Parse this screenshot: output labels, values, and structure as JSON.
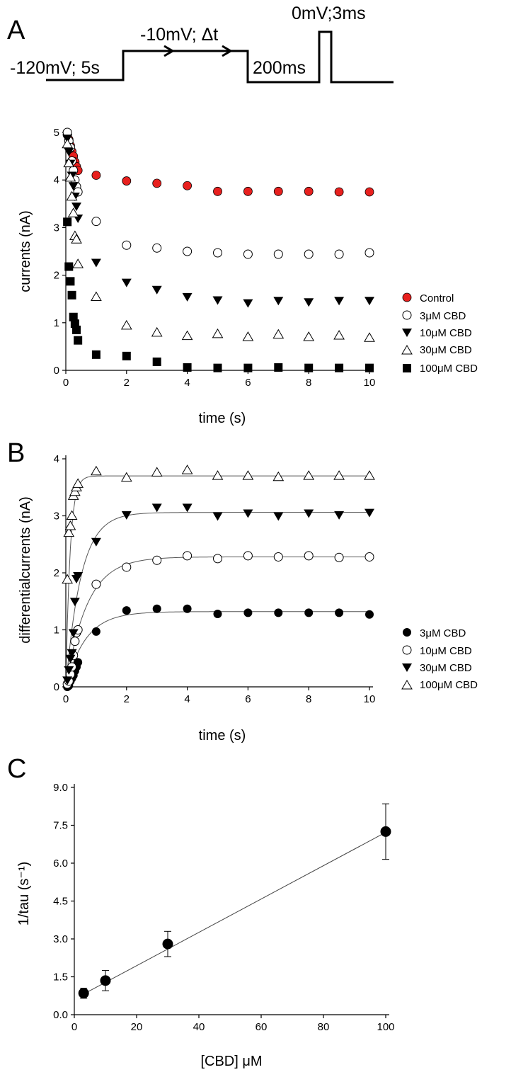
{
  "panel_labels": {
    "a": "A",
    "b": "B",
    "c": "C"
  },
  "protocol": {
    "hold_label": "-120mV; 5s",
    "step_label": "-10mV; Δt",
    "gap_label": "200ms",
    "test_label": "0mV;3ms"
  },
  "chart_data": [
    {
      "id": "A",
      "type": "scatter",
      "xlabel": "time (s)",
      "ylabel": "currents (nA)",
      "xlim": [
        0,
        10
      ],
      "ylim": [
        0,
        5
      ],
      "xticks": [
        "0",
        "2",
        "4",
        "6",
        "8",
        "10"
      ],
      "yticks": [
        "0",
        "1",
        "2",
        "3",
        "4",
        "5"
      ],
      "x": [
        0.05,
        0.1,
        0.15,
        0.2,
        0.25,
        0.3,
        0.35,
        0.4,
        1,
        2,
        3,
        4,
        5,
        6,
        7,
        8,
        9,
        10
      ],
      "series": [
        {
          "name": "Control",
          "marker": "circle-red",
          "values": [
            4.95,
            4.85,
            4.72,
            4.6,
            4.5,
            4.38,
            4.28,
            4.2,
            4.1,
            3.98,
            3.93,
            3.88,
            3.76,
            3.76,
            3.76,
            3.76,
            3.75,
            3.75
          ]
        },
        {
          "name": "3μM CBD",
          "marker": "circle-open",
          "values": [
            5.0,
            4.82,
            4.68,
            4.4,
            4.2,
            4.0,
            3.86,
            3.75,
            3.13,
            2.63,
            2.57,
            2.5,
            2.47,
            2.44,
            2.44,
            2.44,
            2.44,
            2.47
          ]
        },
        {
          "name": "10μM CBD",
          "marker": "triangle-down-filled",
          "values": [
            4.88,
            4.6,
            4.35,
            4.1,
            3.88,
            3.66,
            3.45,
            3.2,
            2.27,
            1.85,
            1.7,
            1.55,
            1.48,
            1.42,
            1.47,
            1.44,
            1.47,
            1.47
          ]
        },
        {
          "name": "30μM CBD",
          "marker": "triangle-up-open",
          "values": [
            4.75,
            4.35,
            4.05,
            3.65,
            3.3,
            2.82,
            2.75,
            2.23,
            1.54,
            0.94,
            0.79,
            0.72,
            0.76,
            0.7,
            0.75,
            0.7,
            0.73,
            0.68
          ]
        },
        {
          "name": "100μM CBD",
          "marker": "square-filled",
          "values": [
            3.12,
            2.18,
            1.87,
            1.58,
            1.12,
            0.98,
            0.85,
            0.63,
            0.33,
            0.3,
            0.18,
            0.06,
            0.05,
            0.05,
            0.06,
            0.05,
            0.05,
            0.05
          ]
        }
      ]
    },
    {
      "id": "B",
      "type": "scatter",
      "xlabel": "time (s)",
      "ylabel": "differentialcurrents (nA)",
      "xlim": [
        0,
        10
      ],
      "ylim": [
        0,
        4
      ],
      "xticks": [
        "0",
        "2",
        "4",
        "6",
        "8",
        "10"
      ],
      "yticks": [
        "0",
        "1",
        "2",
        "3",
        "4"
      ],
      "x": [
        0.05,
        0.1,
        0.15,
        0.2,
        0.25,
        0.3,
        0.35,
        0.4,
        1,
        2,
        3,
        4,
        5,
        6,
        7,
        8,
        9,
        10
      ],
      "series": [
        {
          "name": "3μM CBD",
          "marker": "circle-filled",
          "plateau": 1.32,
          "tau": 0.65,
          "values": [
            0.0,
            0.02,
            0.1,
            0.15,
            0.2,
            0.28,
            0.35,
            0.43,
            0.97,
            1.34,
            1.37,
            1.37,
            1.28,
            1.3,
            1.3,
            1.3,
            1.3,
            1.27
          ]
        },
        {
          "name": "10μM CBD",
          "marker": "circle-open",
          "plateau": 2.28,
          "tau": 0.7,
          "values": [
            0.05,
            0.1,
            0.22,
            0.35,
            0.55,
            0.8,
            0.95,
            1.0,
            1.8,
            2.1,
            2.22,
            2.3,
            2.25,
            2.3,
            2.28,
            2.3,
            2.27,
            2.28
          ]
        },
        {
          "name": "30μM CBD",
          "marker": "triangle-down-filled",
          "plateau": 3.06,
          "tau": 0.5,
          "values": [
            0.12,
            0.3,
            0.5,
            0.6,
            0.95,
            1.5,
            1.9,
            1.95,
            2.55,
            3.02,
            3.15,
            3.15,
            3.0,
            3.05,
            3.0,
            3.05,
            3.02,
            3.06
          ]
        },
        {
          "name": "100μM CBD",
          "marker": "triangle-up-open",
          "plateau": 3.7,
          "tau": 0.14,
          "values": [
            1.88,
            2.7,
            2.82,
            3.0,
            3.35,
            3.42,
            3.5,
            3.56,
            3.78,
            3.67,
            3.76,
            3.8,
            3.7,
            3.7,
            3.68,
            3.7,
            3.7,
            3.7
          ]
        }
      ]
    },
    {
      "id": "C",
      "type": "scatter",
      "xlabel": "[CBD] μM",
      "ylabel": "1/tau (s⁻¹)",
      "xlim": [
        0,
        100
      ],
      "ylim": [
        0,
        9
      ],
      "xticks": [
        "0",
        "20",
        "40",
        "60",
        "80",
        "100"
      ],
      "yticks": [
        "0.0",
        "1.5",
        "3.0",
        "4.5",
        "6.0",
        "7.5",
        "9.0"
      ],
      "x": [
        3,
        10,
        30,
        100
      ],
      "values": [
        0.85,
        1.35,
        2.8,
        7.25
      ],
      "errors": [
        0.2,
        0.4,
        0.5,
        1.1
      ],
      "fit": {
        "slope": 0.066,
        "intercept": 0.62
      }
    }
  ]
}
